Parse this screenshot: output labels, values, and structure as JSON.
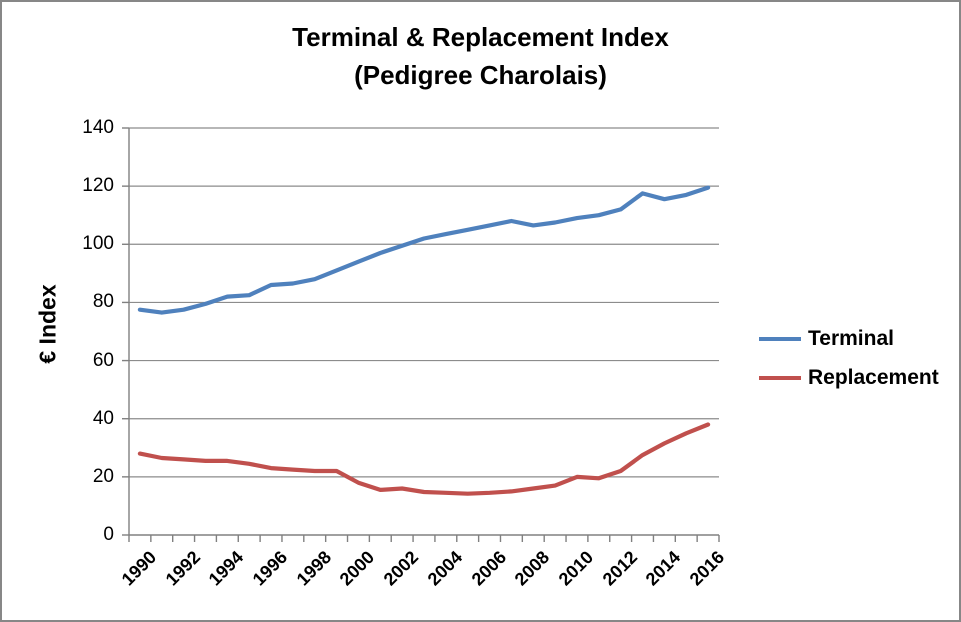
{
  "window": {
    "border_color": "#878787",
    "background_color": "#ffffff"
  },
  "chart_data": {
    "type": "line",
    "title_line1": "Terminal & Replacement Index",
    "title_line2": "(Pedigree Charolais)",
    "ylabel": "€ Index",
    "ylim": [
      0,
      140
    ],
    "yticks": [
      0,
      20,
      40,
      60,
      80,
      100,
      120,
      140
    ],
    "grid": "horizontal",
    "gridline_color": "#8c8c8c",
    "axis_color": "#808080",
    "legend_position": "right",
    "categories": [
      "1990",
      "1991",
      "1992",
      "1993",
      "1994",
      "1995",
      "1996",
      "1997",
      "1998",
      "1999",
      "2000",
      "2001",
      "2002",
      "2003",
      "2004",
      "2005",
      "2006",
      "2007",
      "2008",
      "2009",
      "2010",
      "2011",
      "2012",
      "2013",
      "2014",
      "2015",
      "2016"
    ],
    "xtick_labels": [
      "1990",
      "1992",
      "1994",
      "1996",
      "1998",
      "2000",
      "2002",
      "2004",
      "2006",
      "2008",
      "2010",
      "2012",
      "2014",
      "2016"
    ],
    "series": [
      {
        "name": "Terminal",
        "color": "#4f81bd",
        "values": [
          77.5,
          76.5,
          77.5,
          79.5,
          82,
          82.5,
          86,
          86.5,
          88,
          91,
          94,
          97,
          99.5,
          102,
          103.5,
          105,
          106.5,
          108,
          106.5,
          107.5,
          109,
          110,
          112,
          117.5,
          115.5,
          117,
          119.5
        ]
      },
      {
        "name": "Replacement",
        "color": "#c0504d",
        "values": [
          28,
          26.5,
          26,
          25.5,
          25.5,
          24.5,
          23,
          22.5,
          22,
          22,
          18,
          15.5,
          16,
          14.8,
          14.5,
          14.2,
          14.5,
          15,
          16,
          17,
          20,
          19.5,
          22,
          27.5,
          31.5,
          35,
          38
        ]
      }
    ]
  }
}
